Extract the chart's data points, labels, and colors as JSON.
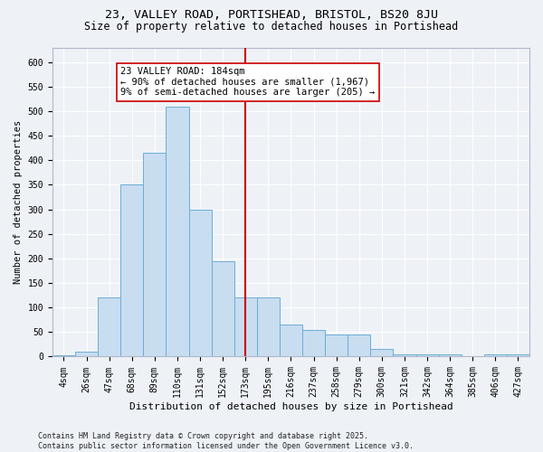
{
  "title1": "23, VALLEY ROAD, PORTISHEAD, BRISTOL, BS20 8JU",
  "title2": "Size of property relative to detached houses in Portishead",
  "xlabel": "Distribution of detached houses by size in Portishead",
  "ylabel": "Number of detached properties",
  "categories": [
    "4sqm",
    "26sqm",
    "47sqm",
    "68sqm",
    "89sqm",
    "110sqm",
    "131sqm",
    "152sqm",
    "173sqm",
    "195sqm",
    "216sqm",
    "237sqm",
    "258sqm",
    "279sqm",
    "300sqm",
    "321sqm",
    "342sqm",
    "364sqm",
    "385sqm",
    "406sqm",
    "427sqm"
  ],
  "values": [
    3,
    10,
    120,
    350,
    415,
    510,
    300,
    195,
    120,
    120,
    65,
    55,
    45,
    45,
    15,
    5,
    5,
    5,
    0,
    5,
    5
  ],
  "bar_color": "#c8ddf0",
  "bar_edge_color": "#6baed6",
  "vline_x_index": 8,
  "vline_color": "#cc0000",
  "annotation_text": "23 VALLEY ROAD: 184sqm\n← 90% of detached houses are smaller (1,967)\n9% of semi-detached houses are larger (205) →",
  "annotation_box_color": "#ffffff",
  "annotation_box_edge_color": "#cc0000",
  "ylim": [
    0,
    630
  ],
  "yticks": [
    0,
    50,
    100,
    150,
    200,
    250,
    300,
    350,
    400,
    450,
    500,
    550,
    600
  ],
  "footer": "Contains HM Land Registry data © Crown copyright and database right 2025.\nContains public sector information licensed under the Open Government Licence v3.0.",
  "bg_color": "#eef2f7",
  "grid_color": "#ffffff",
  "title1_fontsize": 9.5,
  "title2_fontsize": 8.5,
  "annotation_fontsize": 7.5,
  "xlabel_fontsize": 8,
  "ylabel_fontsize": 7.5,
  "tick_fontsize": 7,
  "footer_fontsize": 6
}
